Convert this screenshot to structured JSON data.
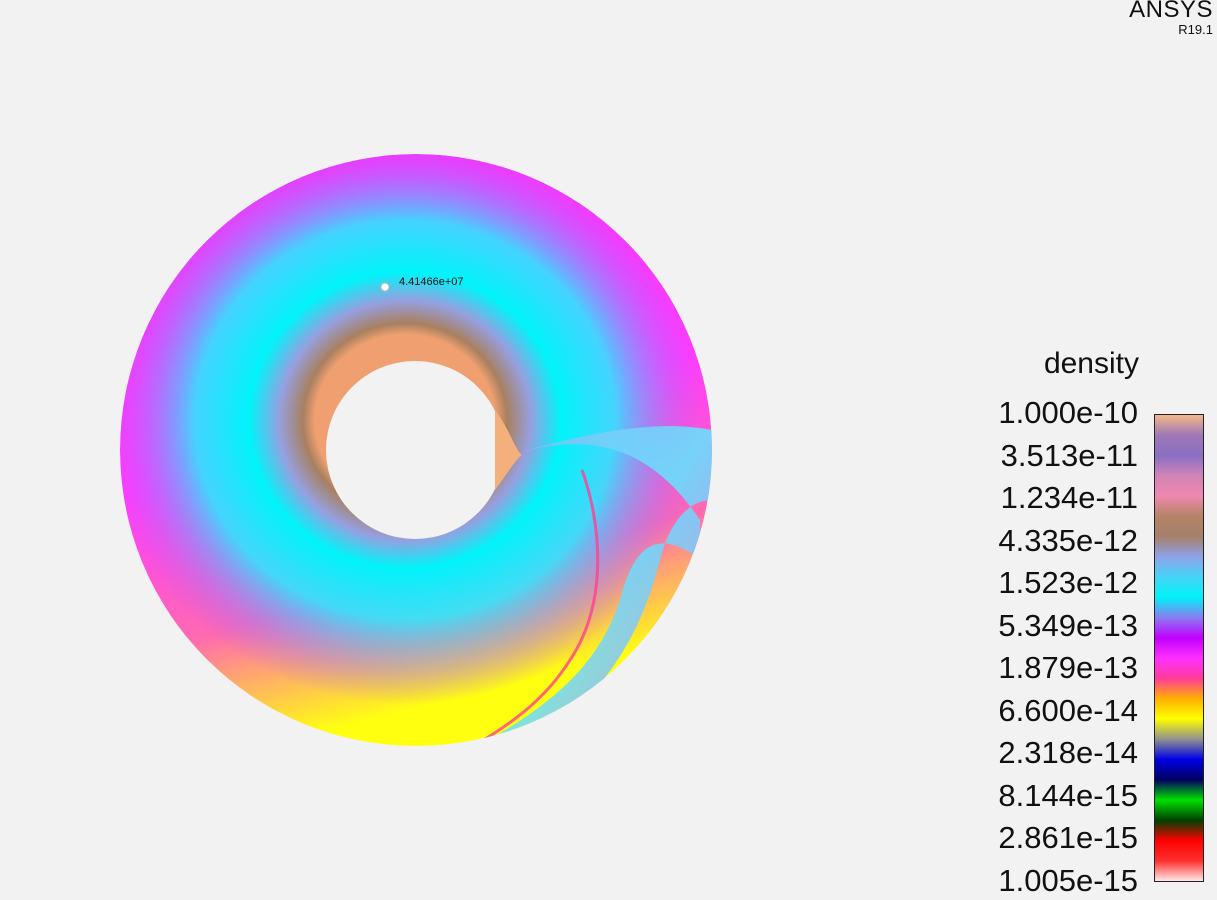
{
  "logo": {
    "brand": "ANSYS",
    "version": "R19.1"
  },
  "probe": {
    "value": "4.41466e+07"
  },
  "legend": {
    "title": "density",
    "labels": [
      "1.000e-10",
      "3.513e-11",
      "1.234e-11",
      "4.335e-12",
      "1.523e-12",
      "5.349e-13",
      "1.879e-13",
      "6.600e-14",
      "2.318e-14",
      "8.144e-15",
      "2.861e-15",
      "1.005e-15"
    ],
    "colors_top_to_bottom": [
      "#f3b88a",
      "#9e78b6",
      "#8a6fc4",
      "#d084b5",
      "#f088b0",
      "#b48464",
      "#a6806c",
      "#8fa2e8",
      "#46d4f7",
      "#00f2f8",
      "#8a7cf0",
      "#c000ff",
      "#ff30ff",
      "#ff3c9a",
      "#ffb000",
      "#ffff00",
      "#909090",
      "#0000e6",
      "#000060",
      "#00e000",
      "#004000",
      "#ff0000",
      "#ff3030",
      "#ffe8e8"
    ]
  }
}
